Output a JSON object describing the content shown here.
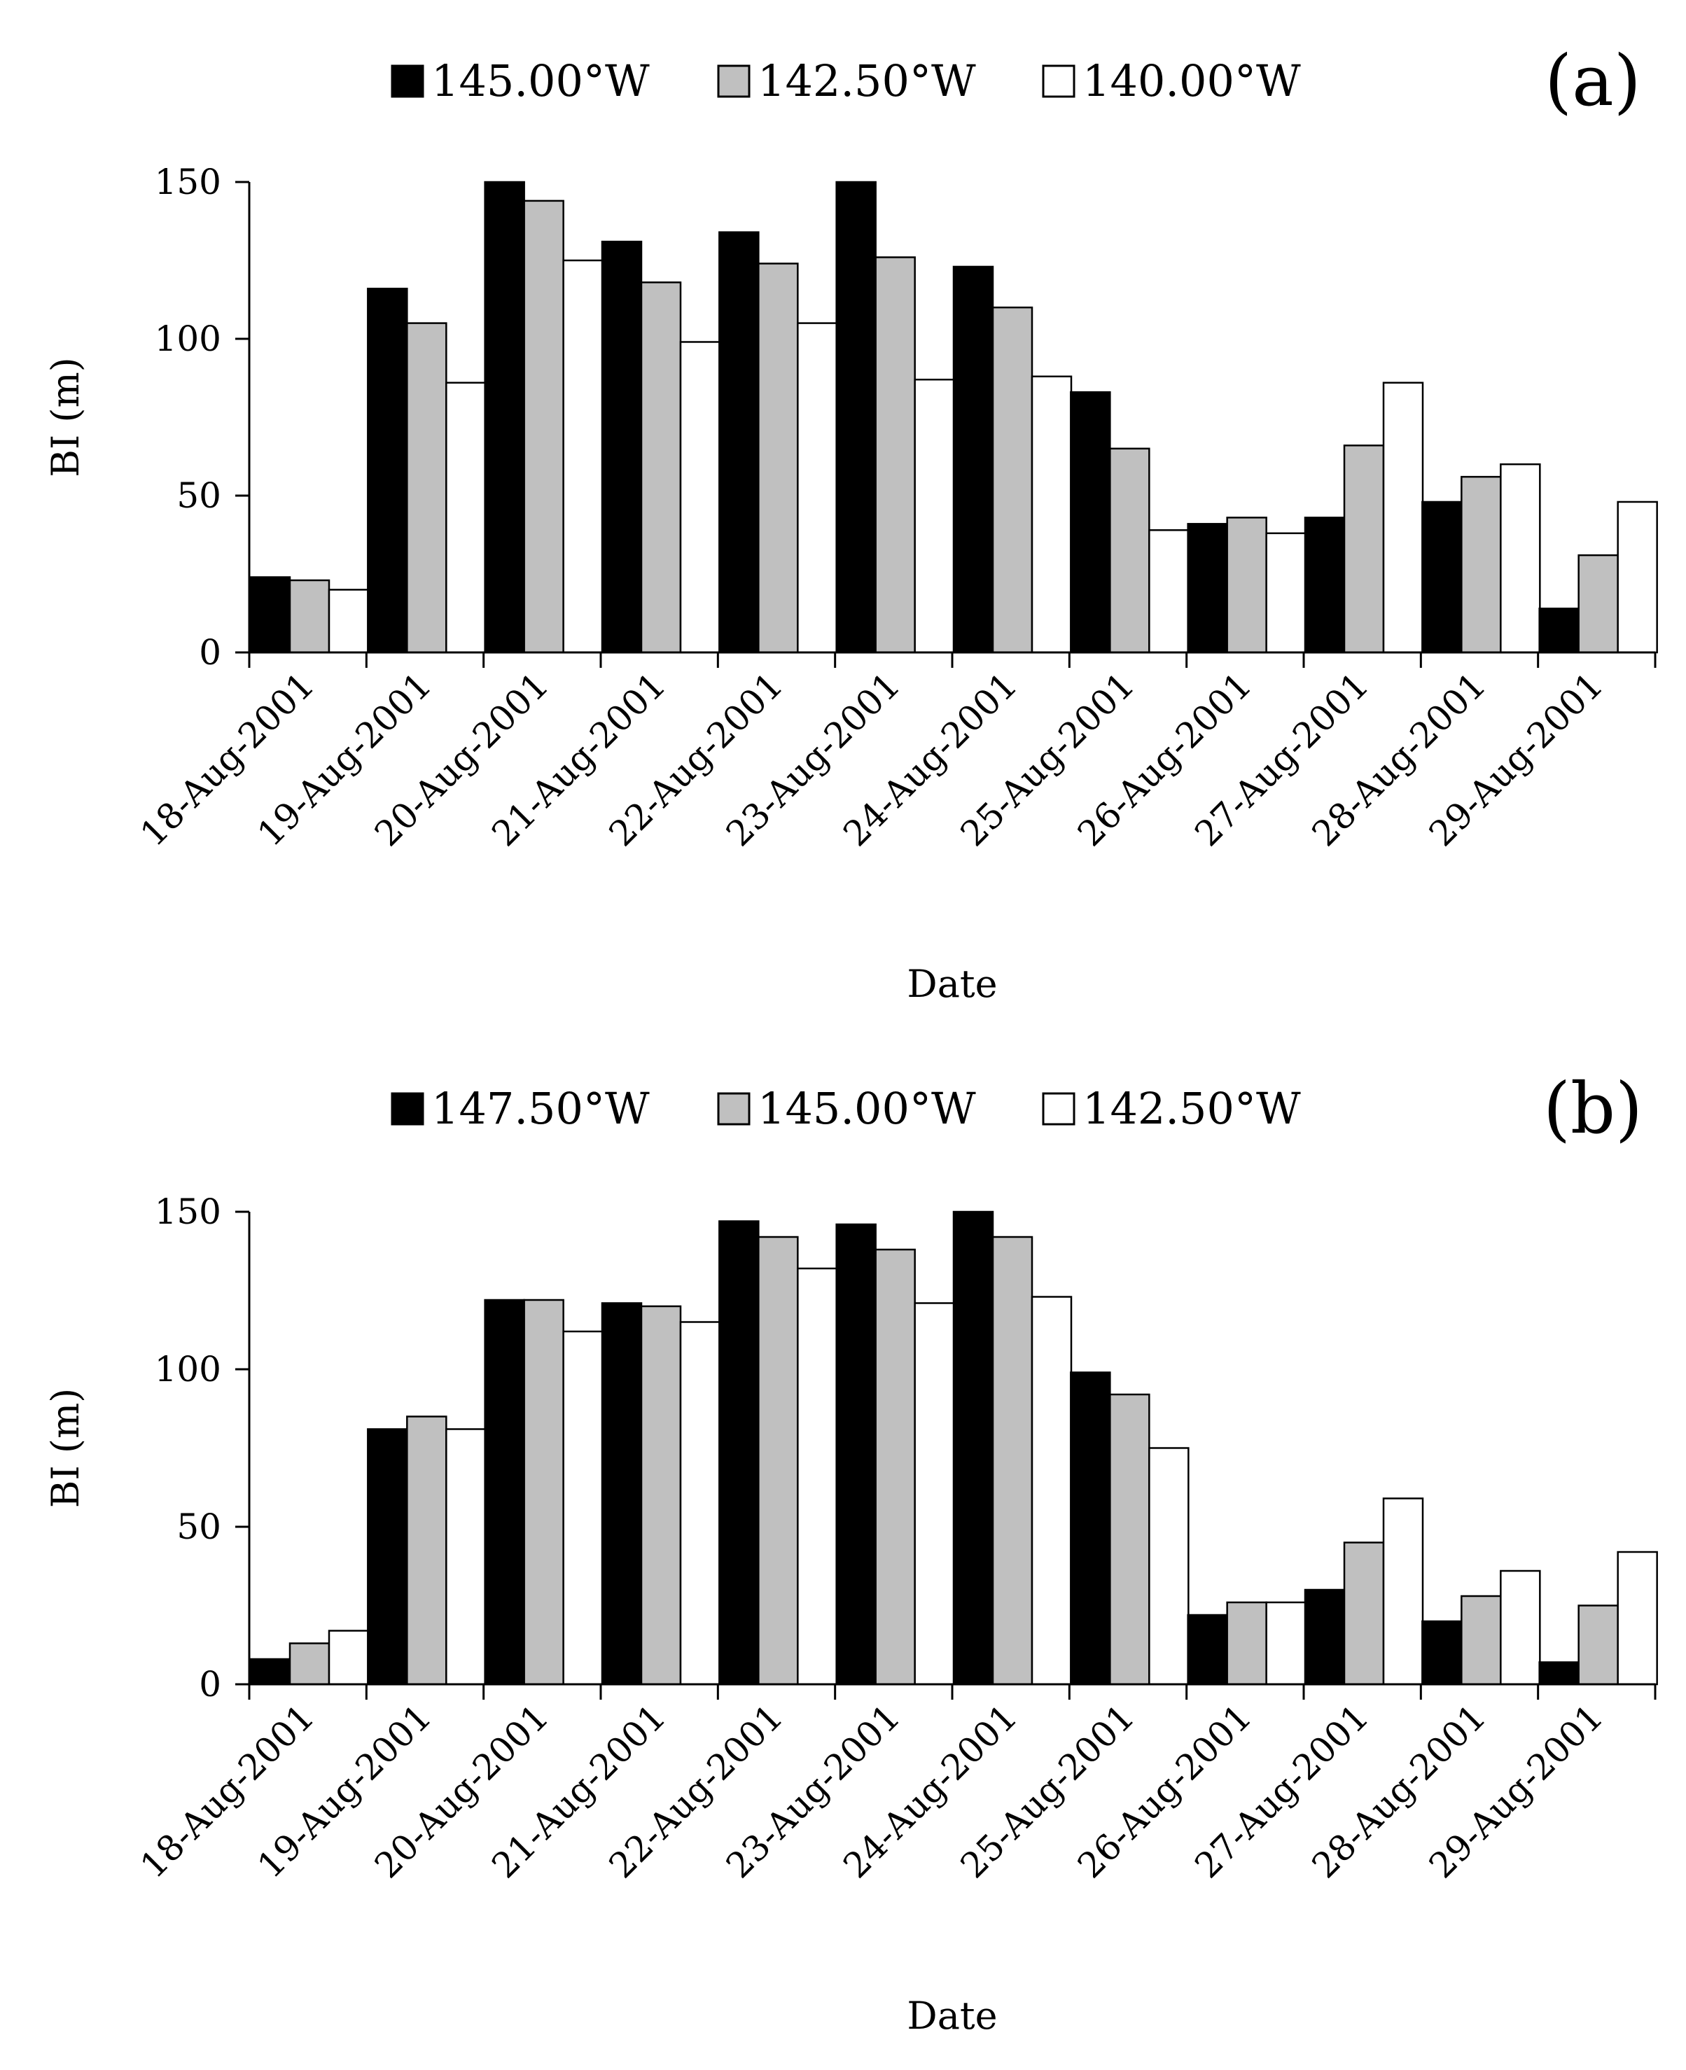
{
  "chart_data": [
    {
      "type": "bar",
      "panel_label": "(a)",
      "categories": [
        "18-Aug-2001",
        "19-Aug-2001",
        "20-Aug-2001",
        "21-Aug-2001",
        "22-Aug-2001",
        "23-Aug-2001",
        "24-Aug-2001",
        "25-Aug-2001",
        "26-Aug-2001",
        "27-Aug-2001",
        "28-Aug-2001",
        "29-Aug-2001"
      ],
      "series": [
        {
          "name": "145.00°W",
          "color": "#000000",
          "values": [
            24,
            116,
            150,
            131,
            134,
            150,
            123,
            83,
            41,
            43,
            48,
            14
          ]
        },
        {
          "name": "142.50°W",
          "color": "#c0c0c0",
          "values": [
            23,
            105,
            144,
            118,
            124,
            126,
            110,
            65,
            43,
            66,
            56,
            31
          ]
        },
        {
          "name": "140.00°W",
          "color": "#ffffff",
          "values": [
            20,
            86,
            125,
            99,
            105,
            87,
            88,
            39,
            38,
            86,
            60,
            48
          ]
        }
      ],
      "xlabel": "Date",
      "ylabel": "BI (m)",
      "ylim": [
        0,
        150
      ],
      "yticks": [
        0,
        50,
        100,
        150
      ],
      "grid": false,
      "legend_position": "top"
    },
    {
      "type": "bar",
      "panel_label": "(b)",
      "categories": [
        "18-Aug-2001",
        "19-Aug-2001",
        "20-Aug-2001",
        "21-Aug-2001",
        "22-Aug-2001",
        "23-Aug-2001",
        "24-Aug-2001",
        "25-Aug-2001",
        "26-Aug-2001",
        "27-Aug-2001",
        "28-Aug-2001",
        "29-Aug-2001"
      ],
      "series": [
        {
          "name": "147.50°W",
          "color": "#000000",
          "values": [
            8,
            81,
            122,
            121,
            147,
            146,
            150,
            99,
            22,
            30,
            20,
            7
          ]
        },
        {
          "name": "145.00°W",
          "color": "#c0c0c0",
          "values": [
            13,
            85,
            122,
            120,
            142,
            138,
            142,
            92,
            26,
            45,
            28,
            25
          ]
        },
        {
          "name": "142.50°W",
          "color": "#ffffff",
          "values": [
            17,
            81,
            112,
            115,
            132,
            121,
            123,
            75,
            26,
            59,
            36,
            42
          ]
        }
      ],
      "xlabel": "Date",
      "ylabel": "BI (m)",
      "ylim": [
        0,
        150
      ],
      "yticks": [
        0,
        50,
        100,
        150
      ],
      "grid": false,
      "legend_position": "top"
    }
  ]
}
